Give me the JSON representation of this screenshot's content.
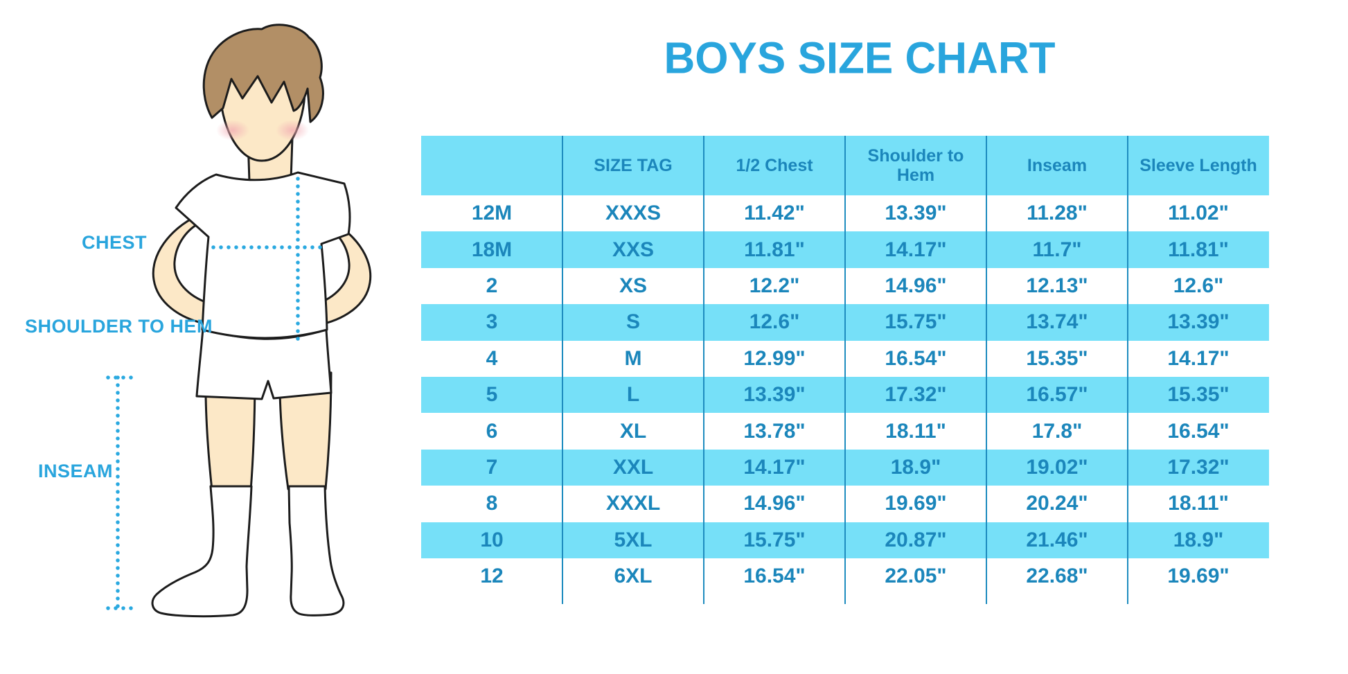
{
  "title": "BOYS SIZE CHART",
  "figure_labels": {
    "chest": "CHEST",
    "shoulder_to_hem": "SHOULDER TO HEM",
    "inseam": "INSEAM"
  },
  "chart_data": {
    "type": "table",
    "title": "BOYS SIZE CHART",
    "columns": [
      "",
      "SIZE TAG",
      "1/2 Chest",
      "Shoulder to Hem",
      "Inseam",
      "Sleeve Length"
    ],
    "rows": [
      [
        "12M",
        "XXXS",
        "11.42\"",
        "13.39\"",
        "11.28\"",
        "11.02\""
      ],
      [
        "18M",
        "XXS",
        "11.81\"",
        "14.17\"",
        "11.7\"",
        "11.81\""
      ],
      [
        "2",
        "XS",
        "12.2\"",
        "14.96\"",
        "12.13\"",
        "12.6\""
      ],
      [
        "3",
        "S",
        "12.6\"",
        "15.75\"",
        "13.74\"",
        "13.39\""
      ],
      [
        "4",
        "M",
        "12.99\"",
        "16.54\"",
        "15.35\"",
        "14.17\""
      ],
      [
        "5",
        "L",
        "13.39\"",
        "17.32\"",
        "16.57\"",
        "15.35\""
      ],
      [
        "6",
        "XL",
        "13.78\"",
        "18.11\"",
        "17.8\"",
        "16.54\""
      ],
      [
        "7",
        "XXL",
        "14.17\"",
        "18.9\"",
        "19.02\"",
        "17.32\""
      ],
      [
        "8",
        "XXXL",
        "14.96\"",
        "19.69\"",
        "20.24\"",
        "18.11\""
      ],
      [
        "10",
        "5XL",
        "15.75\"",
        "20.87\"",
        "21.46\"",
        "18.9\""
      ],
      [
        "12",
        "6XL",
        "16.54\"",
        "22.05\"",
        "22.68\"",
        "19.69\""
      ]
    ],
    "units": "inches",
    "layout": "header row light blue; data rows alternate white / light blue starting white; vertical column dividers only",
    "legend_position": "none"
  },
  "colors": {
    "accent_blue": "#29A5DD",
    "stripe_blue": "#76E0F8",
    "divider_blue": "#1E8CBF",
    "cell_text_blue": "#1B86BB",
    "dotted_line_blue": "#2AA9E0",
    "skin": "#FCE8C7",
    "hair_brown": "#B28F66",
    "blush_pink": "#F2B0B6",
    "outline_dark": "#1C1C1C"
  }
}
